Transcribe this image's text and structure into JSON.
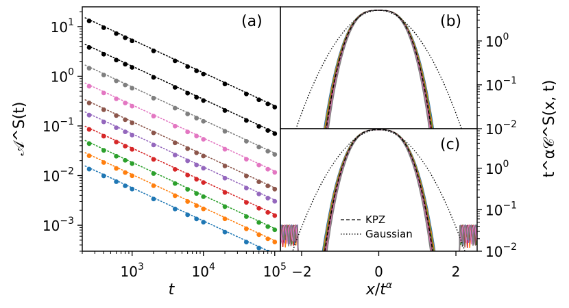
{
  "chart_data": [
    {
      "id": "a",
      "type": "scatter",
      "panel_label": "(a)",
      "xlabel": "t",
      "ylabel": "𝒜^S(t)",
      "x_scale": "log",
      "y_scale": "log",
      "xlim": [
        200,
        120000
      ],
      "ylim": [
        0.0003,
        25
      ],
      "x_ticks": [
        1000,
        10000,
        100000
      ],
      "x_tick_labels": [
        {
          "base": "10",
          "exp": "3"
        },
        {
          "base": "10",
          "exp": "4"
        },
        {
          "base": "10",
          "exp": "5"
        }
      ],
      "y_ticks": [
        0.001,
        0.01,
        0.1,
        1,
        10
      ],
      "y_tick_labels": [
        {
          "base": "10",
          "exp": "−3"
        },
        {
          "base": "10",
          "exp": "−2"
        },
        {
          "base": "10",
          "exp": "−1"
        },
        {
          "base": "10",
          "exp": "0"
        },
        {
          "base": "10",
          "exp": "1"
        }
      ],
      "x": [
        250,
        400,
        600,
        800,
        1000,
        2000,
        4000,
        6000,
        8000,
        10000,
        20000,
        40000,
        60000,
        80000,
        100000
      ],
      "fit_slope": -0.667,
      "series": [
        {
          "color": "#000000",
          "y0": 13.0
        },
        {
          "color": "#000000",
          "y0": 3.8
        },
        {
          "color": "#7f7f7f",
          "y0": 1.45
        },
        {
          "color": "#e377c2",
          "y0": 0.63
        },
        {
          "color": "#8c564b",
          "y0": 0.29
        },
        {
          "color": "#9467bd",
          "y0": 0.165
        },
        {
          "color": "#d62728",
          "y0": 0.085
        },
        {
          "color": "#2ca02c",
          "y0": 0.044
        },
        {
          "color": "#ff7f0e",
          "y0": 0.025
        },
        {
          "color": "#1f77b4",
          "y0": 0.0135
        }
      ]
    },
    {
      "id": "b",
      "type": "line",
      "panel_label": "(b)",
      "ylabel": "t^α𝒞^S(x, t)",
      "y_scale": "log",
      "xlim": [
        -2.55,
        2.55
      ],
      "ylim": [
        0.01,
        6
      ],
      "y_ticks": [
        0.01,
        0.1,
        1
      ],
      "y_tick_labels": [
        {
          "base": "10",
          "exp": "−2"
        },
        {
          "base": "10",
          "exp": "−1"
        },
        {
          "base": "10",
          "exp": "0"
        }
      ],
      "peak": 5.0,
      "kpz_width": 0.74,
      "gauss_width": 0.86,
      "data_colors": [
        "#1f77b4",
        "#ff7f0e",
        "#2ca02c",
        "#d62728",
        "#9467bd",
        "#8c564b",
        "#e377c2",
        "#7f7f7f"
      ]
    },
    {
      "id": "c",
      "type": "line",
      "panel_label": "(c)",
      "xlabel": "x/t^α",
      "y_scale": "log",
      "xlim": [
        -2.55,
        2.55
      ],
      "ylim": [
        0.01,
        9
      ],
      "x_ticks": [
        -2,
        0,
        2
      ],
      "x_tick_labels": [
        "−2",
        "0",
        "2"
      ],
      "y_ticks": [
        0.01,
        0.1,
        1
      ],
      "y_tick_labels": [
        {
          "base": "10",
          "exp": "−2"
        },
        {
          "base": "10",
          "exp": "−1"
        },
        {
          "base": "10",
          "exp": "0"
        }
      ],
      "peak": 8.5,
      "kpz_width": 0.74,
      "gauss_width": 0.86,
      "data_colors": [
        "#1f77b4",
        "#ff7f0e",
        "#2ca02c",
        "#d62728",
        "#9467bd",
        "#8c564b",
        "#e377c2",
        "#7f7f7f"
      ],
      "legend": [
        {
          "label": "KPZ",
          "style": "dashed"
        },
        {
          "label": "Gaussian",
          "style": "dotted"
        }
      ]
    }
  ]
}
